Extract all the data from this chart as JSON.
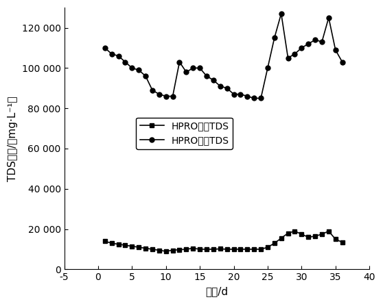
{
  "inlet_x": [
    1,
    2,
    3,
    4,
    5,
    6,
    7,
    8,
    9,
    10,
    11,
    12,
    13,
    14,
    15,
    16,
    17,
    18,
    19,
    20,
    21,
    22,
    23,
    24,
    25,
    26,
    27,
    28,
    29,
    30,
    31,
    32,
    33,
    34,
    35,
    36
  ],
  "inlet_y": [
    14000,
    13000,
    12500,
    12000,
    11500,
    11000,
    10500,
    10000,
    9500,
    9000,
    9500,
    9800,
    10000,
    10500,
    10000,
    10000,
    10000,
    10200,
    10000,
    10000,
    10000,
    10000,
    10000,
    10000,
    11000,
    13000,
    15500,
    18000,
    19000,
    17500,
    16000,
    16500,
    17500,
    19000,
    15000,
    13500
  ],
  "conc_x": [
    1,
    2,
    3,
    4,
    5,
    6,
    7,
    8,
    9,
    10,
    11,
    12,
    13,
    14,
    15,
    16,
    17,
    18,
    19,
    20,
    21,
    22,
    23,
    24,
    25,
    26,
    27,
    28,
    29,
    30,
    31,
    32,
    33,
    34,
    35,
    36
  ],
  "conc_y": [
    110000,
    107000,
    106000,
    103000,
    100000,
    99000,
    96000,
    89000,
    87000,
    86000,
    86000,
    103000,
    98000,
    100000,
    100000,
    96000,
    94000,
    91000,
    90000,
    87000,
    87000,
    86000,
    85000,
    85000,
    100000,
    115000,
    127000,
    105000,
    107000,
    110000,
    112000,
    114000,
    113000,
    125000,
    109000,
    103000
  ],
  "xlim": [
    -5,
    40
  ],
  "ylim": [
    0,
    130000
  ],
  "xticks": [
    -5,
    0,
    5,
    10,
    15,
    20,
    25,
    30,
    35,
    40
  ],
  "yticks": [
    0,
    20000,
    40000,
    60000,
    80000,
    100000,
    120000
  ],
  "xlabel": "时间/d",
  "ylabel": "TDS浓度/（mg·L⁻¹）",
  "legend1": "HPRO进水TDS",
  "legend2": "HPRO浓水TDS",
  "line_color": "#000000",
  "marker_square": "s",
  "marker_circle": "o",
  "markersize": 5,
  "linewidth": 1.2,
  "fontsize_label": 11,
  "fontsize_tick": 10,
  "fontsize_legend": 10,
  "ytick_labels": [
    "0",
    "20 000",
    "40 000",
    "60 000",
    "80 000",
    "100 000",
    "120 000"
  ]
}
